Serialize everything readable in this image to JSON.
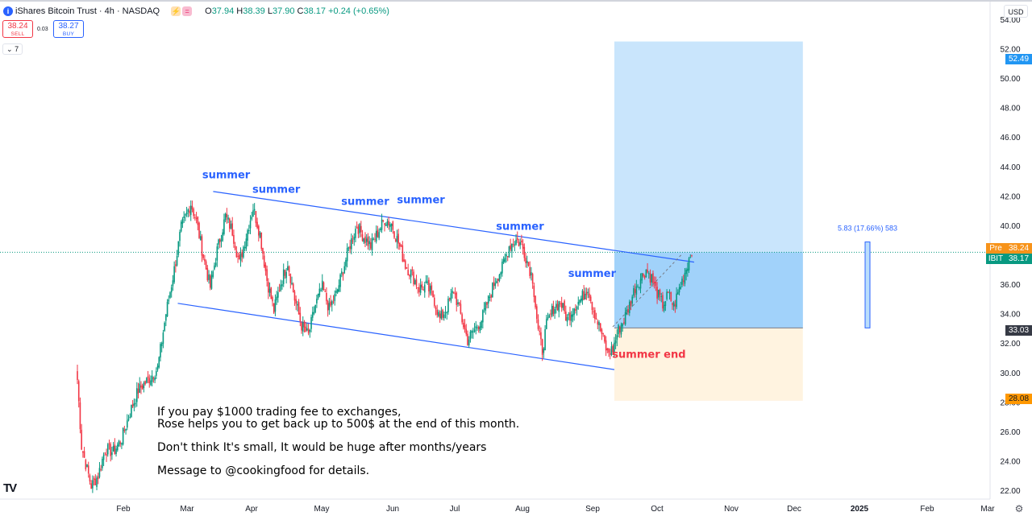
{
  "header": {
    "symbol_icon": "info-badge-icon",
    "title": "iShares Bitcoin Trust · 4h · NASDAQ",
    "badges": [
      {
        "icon": "lightning-icon",
        "text": "⚡",
        "bg": "#ffe0b2",
        "color": "#f57c00"
      },
      {
        "icon": "equals-icon",
        "text": "=",
        "bg": "#f8bbd0",
        "color": "#e91e63"
      }
    ],
    "ohlc": {
      "open_label": "O",
      "open": "37.94",
      "high_label": "H",
      "high": "38.39",
      "low_label": "L",
      "low": "37.90",
      "close_label": "C",
      "close": "38.17",
      "change": "+0.24 (+0.65%)"
    }
  },
  "trade": {
    "sell_price": "38.24",
    "sell_label": "SELL",
    "spread": "0.03",
    "buy_price": "38.27",
    "buy_label": "BUY",
    "collapse_icon": "chevron-down-icon",
    "collapse_count": "7"
  },
  "currency": "USD",
  "price_tags": {
    "target": "52.49",
    "entry": "33.03",
    "stop": "28.08",
    "pre_label": "Pre",
    "pre_value": "38.24",
    "last_label": "IBIT",
    "last_value": "38.17"
  },
  "colors": {
    "up": "#089981",
    "down": "#f23645",
    "channel": "#2962ff",
    "target_zone": "#bbdefb",
    "entry_zone": "#90caf9",
    "stop_zone": "#fff3e0",
    "label_blue": "#2962ff",
    "label_red": "#f23645"
  },
  "measure_label": "5.83 (17.66%) 583",
  "promo": {
    "line1": "If you pay $1000 trading fee to exchanges,",
    "line2": "Rose helps you to get back up to 500$ at the end of this month.",
    "line3": "Don't think It's small, It would be huge after months/years",
    "line4": "Message to @cookingfood for details."
  },
  "chart_data": {
    "type": "candlestick",
    "symbol": "IBIT",
    "interval": "4h",
    "ylim": [
      21.4,
      55.2
    ],
    "y_ticks": [
      22,
      24,
      26,
      28,
      30,
      32,
      34,
      36,
      38,
      40,
      42,
      44,
      46,
      48,
      50,
      52,
      54
    ],
    "x_ticks": [
      "Feb",
      "Mar",
      "Apr",
      "May",
      "Jun",
      "Jul",
      "Aug",
      "Sep",
      "Oct",
      "Nov",
      "Dec",
      "2025",
      "Feb",
      "Mar"
    ],
    "channel": {
      "upper": [
        [
          "Mar 13",
          42.3
        ],
        [
          "Oct 18",
          37.5
        ]
      ],
      "lower": [
        [
          "Feb 26",
          34.7
        ],
        [
          "Sep 11",
          30.2
        ]
      ]
    },
    "position": {
      "entry": 33.03,
      "target": 52.49,
      "stop": 28.08,
      "start": "Sep 11",
      "end": "Dec 5"
    },
    "measure": {
      "change": 5.83,
      "percent": 17.66,
      "bars": 583
    },
    "annotations": [
      {
        "text": "summer",
        "x": "Mar 8",
        "y": 43.2,
        "color": "blue"
      },
      {
        "text": "summer",
        "x": "Mar 31",
        "y": 42.2,
        "color": "blue"
      },
      {
        "text": "summer",
        "x": "May 10",
        "y": 41.4,
        "color": "blue"
      },
      {
        "text": "summer",
        "x": "Jun 3",
        "y": 41.5,
        "color": "blue"
      },
      {
        "text": "summer",
        "x": "Jul 20",
        "y": 39.7,
        "color": "blue"
      },
      {
        "text": "summer",
        "x": "Aug 22",
        "y": 36.5,
        "color": "blue"
      },
      {
        "text": "summer end",
        "x": "Sep 10",
        "y": 31.0,
        "color": "red"
      }
    ],
    "anchors": [
      [
        0,
        29.5
      ],
      [
        3,
        25.0
      ],
      [
        6,
        23.8
      ],
      [
        10,
        22.3
      ],
      [
        15,
        23.0
      ],
      [
        20,
        24.8
      ],
      [
        26,
        24.6
      ],
      [
        32,
        25.5
      ],
      [
        38,
        27.3
      ],
      [
        44,
        28.8
      ],
      [
        52,
        29.6
      ],
      [
        58,
        30.3
      ],
      [
        64,
        34.0
      ],
      [
        70,
        37.0
      ],
      [
        75,
        39.8
      ],
      [
        82,
        41.5
      ],
      [
        86,
        40.3
      ],
      [
        91,
        37.9
      ],
      [
        96,
        35.8
      ],
      [
        101,
        38.3
      ],
      [
        107,
        40.6
      ],
      [
        112,
        39.6
      ],
      [
        117,
        37.4
      ],
      [
        122,
        39.3
      ],
      [
        127,
        41.2
      ],
      [
        132,
        39.4
      ],
      [
        137,
        36.3
      ],
      [
        142,
        34.2
      ],
      [
        147,
        36.1
      ],
      [
        152,
        37.5
      ],
      [
        157,
        35.0
      ],
      [
        162,
        33.2
      ],
      [
        167,
        32.5
      ],
      [
        172,
        34.6
      ],
      [
        177,
        35.8
      ],
      [
        182,
        34.3
      ],
      [
        187,
        35.3
      ],
      [
        192,
        37.0
      ],
      [
        197,
        38.7
      ],
      [
        202,
        40.0
      ],
      [
        207,
        39.2
      ],
      [
        212,
        38.6
      ],
      [
        217,
        39.5
      ],
      [
        222,
        40.4
      ],
      [
        227,
        40.1
      ],
      [
        232,
        38.8
      ],
      [
        237,
        37.3
      ],
      [
        242,
        36.6
      ],
      [
        247,
        35.7
      ],
      [
        252,
        35.9
      ],
      [
        257,
        35.2
      ],
      [
        262,
        33.6
      ],
      [
        267,
        34.4
      ],
      [
        272,
        35.6
      ],
      [
        277,
        33.9
      ],
      [
        282,
        32.2
      ],
      [
        287,
        32.9
      ],
      [
        292,
        33.6
      ],
      [
        297,
        34.9
      ],
      [
        302,
        36.3
      ],
      [
        307,
        37.1
      ],
      [
        312,
        38.6
      ],
      [
        317,
        39.0
      ],
      [
        321,
        38.7
      ],
      [
        325,
        37.6
      ],
      [
        329,
        36.4
      ],
      [
        333,
        32.8
      ],
      [
        336,
        31.5
      ],
      [
        339,
        33.2
      ],
      [
        344,
        34.4
      ],
      [
        349,
        34.8
      ],
      [
        354,
        33.6
      ],
      [
        359,
        34.5
      ],
      [
        364,
        35.0
      ],
      [
        369,
        35.8
      ],
      [
        372,
        34.6
      ],
      [
        375,
        33.7
      ],
      [
        379,
        32.6
      ],
      [
        383,
        31.3
      ],
      [
        387,
        31.6
      ],
      [
        391,
        32.9
      ],
      [
        395,
        33.6
      ],
      [
        399,
        34.6
      ],
      [
        403,
        35.8
      ],
      [
        407,
        36.4
      ],
      [
        411,
        37.0
      ],
      [
        415,
        36.4
      ],
      [
        419,
        35.4
      ],
      [
        423,
        34.6
      ],
      [
        427,
        35.3
      ],
      [
        431,
        34.5
      ],
      [
        435,
        35.7
      ],
      [
        440,
        37.1
      ],
      [
        444,
        38.4
      ]
    ]
  }
}
